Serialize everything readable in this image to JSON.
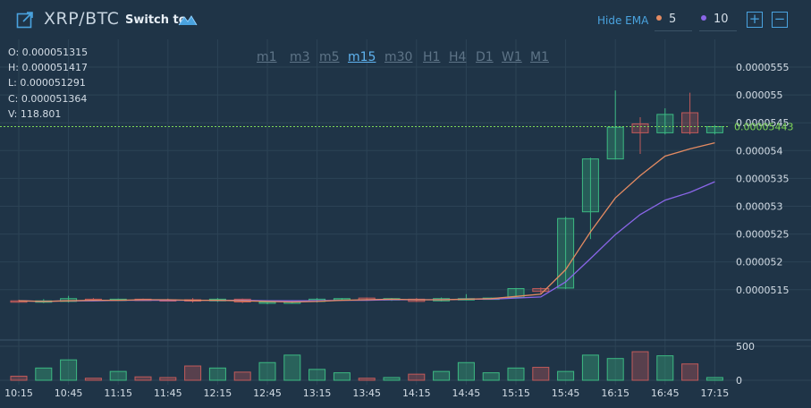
{
  "header": {
    "pair": "XRP/BTC",
    "switch_label": "Switch to",
    "hide_ema_label": "Hide EMA",
    "ema_fast": "5",
    "ema_slow": "10",
    "zoom_in": "+",
    "zoom_out": "−"
  },
  "ohlc": {
    "open": "O: 0.000051315",
    "high": "H: 0.000051417",
    "low": "L: 0.000051291",
    "close": "C: 0.000051364",
    "volume": "V: 118.801"
  },
  "timeframes": [
    "m1",
    "m3",
    "m5",
    "m15",
    "m30",
    "H1",
    "H4",
    "D1",
    "W1",
    "M1"
  ],
  "active_timeframe": "m15",
  "colors": {
    "background": "#1f3447",
    "grid": "#2c4356",
    "up": "#3cb982",
    "down": "#c25a5a",
    "ema_fast": "#e48b62",
    "ema_slow": "#8a66e8",
    "last_price": "#7fd957"
  },
  "chart_data": {
    "type": "candlestick",
    "price_ticks": [
      "0.0000555",
      "0.000055",
      "0.0000545",
      "0.000054",
      "0.0000535",
      "0.000053",
      "0.0000525",
      "0.000052",
      "0.0000515"
    ],
    "volume_ticks": [
      "500",
      "0"
    ],
    "time_ticks": [
      "10:15",
      "10:45",
      "11:15",
      "11:45",
      "12:15",
      "12:45",
      "13:15",
      "13:45",
      "14:15",
      "14:45",
      "15:15",
      "15:45",
      "16:15",
      "16:45",
      "17:15"
    ],
    "last_price": "0.00005443",
    "ylim": [
      5.1e-05,
      5.57e-05
    ],
    "volume_ylim": [
      0,
      500
    ],
    "candles": [
      {
        "t": "10:15",
        "o": 5.13e-05,
        "h": 5.132e-05,
        "l": 5.127e-05,
        "c": 5.129e-05,
        "v": 60
      },
      {
        "t": "10:30",
        "o": 5.128e-05,
        "h": 5.133e-05,
        "l": 5.126e-05,
        "c": 5.13e-05,
        "v": 180
      },
      {
        "t": "10:45",
        "o": 5.129e-05,
        "h": 5.139e-05,
        "l": 5.127e-05,
        "c": 5.134e-05,
        "v": 300
      },
      {
        "t": "11:00",
        "o": 5.133e-05,
        "h": 5.135e-05,
        "l": 5.13e-05,
        "c": 5.132e-05,
        "v": 30
      },
      {
        "t": "11:15",
        "o": 5.131e-05,
        "h": 5.134e-05,
        "l": 5.13e-05,
        "c": 5.133e-05,
        "v": 130
      },
      {
        "t": "11:30",
        "o": 5.133e-05,
        "h": 5.134e-05,
        "l": 5.13e-05,
        "c": 5.132e-05,
        "v": 50
      },
      {
        "t": "11:45",
        "o": 5.132e-05,
        "h": 5.134e-05,
        "l": 5.13e-05,
        "c": 5.131e-05,
        "v": 40
      },
      {
        "t": "12:00",
        "o": 5.132e-05,
        "h": 5.135e-05,
        "l": 5.127e-05,
        "c": 5.13e-05,
        "v": 210
      },
      {
        "t": "12:15",
        "o": 5.13e-05,
        "h": 5.135e-05,
        "l": 5.128e-05,
        "c": 5.133e-05,
        "v": 180
      },
      {
        "t": "12:30",
        "o": 5.133e-05,
        "h": 5.134e-05,
        "l": 5.126e-05,
        "c": 5.128e-05,
        "v": 120
      },
      {
        "t": "12:45",
        "o": 5.127e-05,
        "h": 5.13e-05,
        "l": 5.124e-05,
        "c": 5.128e-05,
        "v": 260
      },
      {
        "t": "13:00",
        "o": 5.126e-05,
        "h": 5.13e-05,
        "l": 5.125e-05,
        "c": 5.128e-05,
        "v": 370
      },
      {
        "t": "13:15",
        "o": 5.129e-05,
        "h": 5.135e-05,
        "l": 5.127e-05,
        "c": 5.133e-05,
        "v": 160
      },
      {
        "t": "13:30",
        "o": 5.133e-05,
        "h": 5.135e-05,
        "l": 5.131e-05,
        "c": 5.134e-05,
        "v": 110
      },
      {
        "t": "13:45",
        "o": 5.135e-05,
        "h": 5.136e-05,
        "l": 5.131e-05,
        "c": 5.132e-05,
        "v": 30
      },
      {
        "t": "14:00",
        "o": 5.132e-05,
        "h": 5.135e-05,
        "l": 5.13e-05,
        "c": 5.134e-05,
        "v": 40
      },
      {
        "t": "14:15",
        "o": 5.133e-05,
        "h": 5.135e-05,
        "l": 5.128e-05,
        "c": 5.129e-05,
        "v": 90
      },
      {
        "t": "14:30",
        "o": 5.13e-05,
        "h": 5.136e-05,
        "l": 5.129e-05,
        "c": 5.134e-05,
        "v": 130
      },
      {
        "t": "14:45",
        "o": 5.133e-05,
        "h": 5.142e-05,
        "l": 5.131e-05,
        "c": 5.134e-05,
        "v": 260
      },
      {
        "t": "15:00",
        "o": 5.134e-05,
        "h": 5.136e-05,
        "l": 5.133e-05,
        "c": 5.135e-05,
        "v": 110
      },
      {
        "t": "15:15",
        "o": 5.136e-05,
        "h": 5.153e-05,
        "l": 5.136e-05,
        "c": 5.152e-05,
        "v": 180
      },
      {
        "t": "15:30",
        "o": 5.152e-05,
        "h": 5.154e-05,
        "l": 5.143e-05,
        "c": 5.147e-05,
        "v": 190
      },
      {
        "t": "15:45",
        "o": 5.153e-05,
        "h": 5.281e-05,
        "l": 5.151e-05,
        "c": 5.278e-05,
        "v": 130
      },
      {
        "t": "16:00",
        "o": 5.29e-05,
        "h": 5.387e-05,
        "l": 5.241e-05,
        "c": 5.385e-05,
        "v": 370
      },
      {
        "t": "16:15",
        "o": 5.385e-05,
        "h": 5.508e-05,
        "l": 5.384e-05,
        "c": 5.442e-05,
        "v": 320
      },
      {
        "t": "16:30",
        "o": 5.448e-05,
        "h": 5.46e-05,
        "l": 5.394e-05,
        "c": 5.432e-05,
        "v": 420
      },
      {
        "t": "16:45",
        "o": 5.432e-05,
        "h": 5.476e-05,
        "l": 5.429e-05,
        "c": 5.465e-05,
        "v": 360
      },
      {
        "t": "17:00",
        "o": 5.468e-05,
        "h": 5.504e-05,
        "l": 5.429e-05,
        "c": 5.432e-05,
        "v": 240
      },
      {
        "t": "17:15",
        "o": 5.432e-05,
        "h": 5.446e-05,
        "l": 5.429e-05,
        "c": 5.443e-05,
        "v": 40
      }
    ],
    "ema5": [
      5.13e-05,
      5.129e-05,
      5.13e-05,
      5.131e-05,
      5.131e-05,
      5.132e-05,
      5.132e-05,
      5.131e-05,
      5.131e-05,
      5.13e-05,
      5.129e-05,
      5.128e-05,
      5.129e-05,
      5.131e-05,
      5.132e-05,
      5.133e-05,
      5.132e-05,
      5.132e-05,
      5.133e-05,
      5.134e-05,
      5.138e-05,
      5.142e-05,
      5.186e-05,
      5.254e-05,
      5.315e-05,
      5.355e-05,
      5.39e-05,
      5.403e-05,
      5.414e-05
    ],
    "ema10": [
      5.13e-05,
      5.129e-05,
      5.13e-05,
      5.13e-05,
      5.131e-05,
      5.131e-05,
      5.131e-05,
      5.131e-05,
      5.131e-05,
      5.131e-05,
      5.13e-05,
      5.13e-05,
      5.13e-05,
      5.131e-05,
      5.131e-05,
      5.132e-05,
      5.132e-05,
      5.132e-05,
      5.133e-05,
      5.133e-05,
      5.135e-05,
      5.137e-05,
      5.164e-05,
      5.206e-05,
      5.249e-05,
      5.285e-05,
      5.311e-05,
      5.325e-05,
      5.344e-05
    ]
  }
}
